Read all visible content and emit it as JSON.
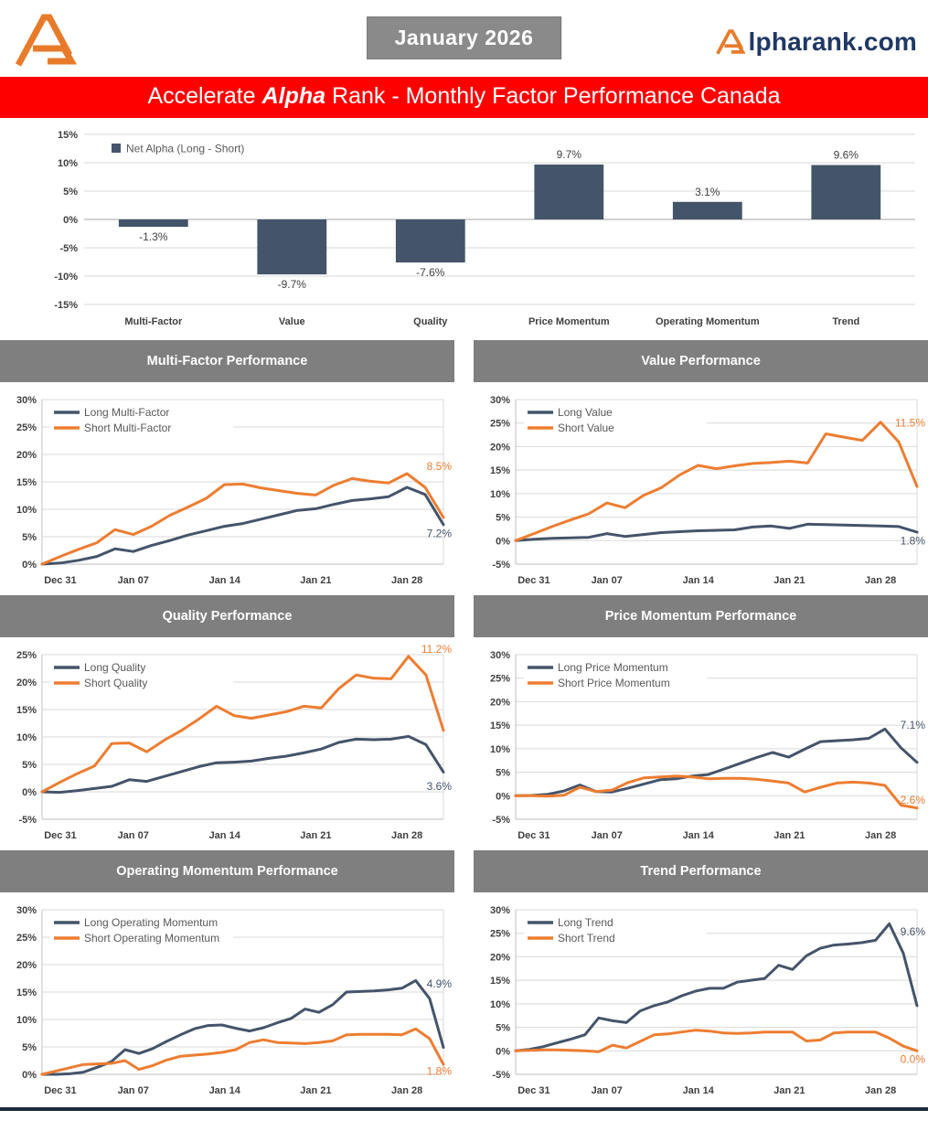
{
  "header": {
    "date_label": "January 2026",
    "brand_text": "lpharank.com"
  },
  "banner": {
    "prefix": "Accelerate",
    "emphasis": "Alpha",
    "suffix": "Rank - Monthly Factor Performance Canada"
  },
  "colors": {
    "long_line": "#44546A",
    "short_line": "#ED7D31",
    "banner_red": "#FF0000",
    "section_header_gray": "#7F7F7F",
    "brand_navy": "#1F3864",
    "logo_orange": "#E87B2A",
    "footer_bar": "#1C2B3A"
  },
  "chart_data": [
    {
      "id": "net-alpha",
      "type": "bar",
      "legend": "Net Alpha (Long - Short)",
      "categories": [
        "Multi-Factor",
        "Value",
        "Quality",
        "Price Momentum",
        "Operating Momentum",
        "Trend"
      ],
      "values": [
        -1.3,
        -9.7,
        -7.6,
        9.7,
        3.1,
        9.6
      ],
      "value_labels": [
        "-1.3%",
        "-9.7%",
        "-7.6%",
        "9.7%",
        "3.1%",
        "9.6%"
      ],
      "ylim": [
        -15,
        15
      ],
      "ytick_step": 5,
      "bar_color": "#44546A",
      "grid": true,
      "legend_position": "top-left"
    },
    {
      "id": "multi-factor",
      "type": "line",
      "title": "Multi-Factor Performance",
      "x_ticks": [
        "Dec 31",
        "Jan 07",
        "Jan 14",
        "Jan 21",
        "Jan 28"
      ],
      "ylim": [
        0,
        30
      ],
      "ytick_step": 5,
      "grid": true,
      "legend_position": "top-left",
      "series": [
        {
          "name": "Long Multi-Factor",
          "color": "#44546A",
          "end_label": "7.2%",
          "end_label_y": 5.6,
          "values": [
            0,
            0.2,
            0.7,
            1.4,
            2.8,
            2.3,
            3.4,
            4.3,
            5.3,
            6.1,
            6.9,
            7.4,
            8.2,
            9.0,
            9.8,
            10.1,
            10.9,
            11.6,
            11.9,
            12.3,
            14.0,
            12.7,
            7.2
          ]
        },
        {
          "name": "Short Multi-Factor",
          "color": "#ED7D31",
          "end_label": "8.5%",
          "end_label_y": 17.8,
          "values": [
            0,
            1.4,
            2.7,
            3.9,
            6.3,
            5.4,
            6.9,
            8.9,
            10.4,
            12.0,
            14.5,
            14.6,
            13.9,
            13.4,
            12.9,
            12.6,
            14.4,
            15.6,
            15.1,
            14.8,
            16.5,
            14.0,
            8.5
          ]
        }
      ]
    },
    {
      "id": "value",
      "type": "line",
      "title": "Value Performance",
      "x_ticks": [
        "Dec 31",
        "Jan 07",
        "Jan 14",
        "Jan 21",
        "Jan 28"
      ],
      "ylim": [
        -5,
        30
      ],
      "ytick_step": 5,
      "grid": true,
      "legend_position": "top-left",
      "series": [
        {
          "name": "Long Value",
          "color": "#44546A",
          "end_label": "1.8%",
          "end_label_y": 0.0,
          "values": [
            0,
            0.3,
            0.5,
            0.6,
            0.7,
            1.5,
            0.9,
            1.3,
            1.7,
            1.9,
            2.1,
            2.2,
            2.3,
            2.9,
            3.1,
            2.6,
            3.5,
            3.4,
            3.3,
            3.2,
            3.1,
            3.0,
            1.8
          ]
        },
        {
          "name": "Short Value",
          "color": "#ED7D31",
          "end_label": "11.5%",
          "end_label_y": 25.0,
          "values": [
            0,
            1.5,
            3.0,
            4.4,
            5.7,
            8.0,
            7.0,
            9.6,
            11.3,
            14.0,
            16.0,
            15.3,
            15.9,
            16.4,
            16.6,
            16.9,
            16.5,
            22.7,
            22.0,
            21.3,
            25.2,
            21.0,
            11.5
          ]
        }
      ]
    },
    {
      "id": "quality",
      "type": "line",
      "title": "Quality Performance",
      "x_ticks": [
        "Dec 31",
        "Jan 07",
        "Jan 14",
        "Jan 21",
        "Jan 28"
      ],
      "ylim": [
        -5,
        25
      ],
      "ytick_step": 5,
      "grid": true,
      "legend_position": "top-left",
      "series": [
        {
          "name": "Long Quality",
          "color": "#44546A",
          "end_label": "3.6%",
          "end_label_y": 1.0,
          "values": [
            0,
            -0.1,
            0.2,
            0.6,
            1.0,
            2.2,
            1.9,
            2.8,
            3.7,
            4.6,
            5.3,
            5.4,
            5.6,
            6.1,
            6.5,
            7.1,
            7.8,
            9.0,
            9.6,
            9.5,
            9.6,
            10.1,
            8.6,
            3.6
          ]
        },
        {
          "name": "Short Quality",
          "color": "#ED7D31",
          "end_label": "11.2%",
          "end_label_y": 26.0,
          "values": [
            0,
            1.7,
            3.3,
            4.7,
            8.8,
            8.9,
            7.3,
            9.4,
            11.2,
            13.3,
            15.6,
            13.9,
            13.4,
            14.0,
            14.6,
            15.6,
            15.3,
            18.8,
            21.3,
            20.7,
            20.6,
            24.7,
            21.3,
            11.2
          ]
        }
      ]
    },
    {
      "id": "price-momentum",
      "type": "line",
      "title": "Price Momentum Performance",
      "x_ticks": [
        "Dec 31",
        "Jan 07",
        "Jan 14",
        "Jan 21",
        "Jan 28"
      ],
      "ylim": [
        -5,
        30
      ],
      "ytick_step": 5,
      "grid": true,
      "legend_position": "top-left",
      "series": [
        {
          "name": "Long Price Momentum",
          "color": "#44546A",
          "end_label": "7.1%",
          "end_label_y": 15.0,
          "values": [
            0,
            0.05,
            0.3,
            1.0,
            2.3,
            0.9,
            0.8,
            1.6,
            2.5,
            3.4,
            3.6,
            4.2,
            4.5,
            5.7,
            6.9,
            8.1,
            9.2,
            8.2,
            9.9,
            11.5,
            11.7,
            11.9,
            12.2,
            14.2,
            10.2,
            7.1
          ]
        },
        {
          "name": "Short Price Momentum",
          "color": "#ED7D31",
          "end_label": "-2.6%",
          "end_label_y": -0.9,
          "values": [
            0,
            0,
            -0.1,
            0.1,
            1.8,
            0.9,
            1.2,
            2.8,
            3.8,
            4.0,
            4.2,
            4.0,
            3.6,
            3.7,
            3.7,
            3.5,
            3.1,
            2.7,
            0.8,
            1.8,
            2.7,
            2.9,
            2.7,
            2.2,
            -2.0,
            -2.6
          ]
        }
      ]
    },
    {
      "id": "operating-momentum",
      "type": "line",
      "title": "Operating Momentum Performance",
      "x_ticks": [
        "Dec 31",
        "Jan 07",
        "Jan 14",
        "Jan 21",
        "Jan 28"
      ],
      "ylim": [
        0,
        30
      ],
      "ytick_step": 5,
      "grid": true,
      "legend_position": "top-left",
      "series": [
        {
          "name": "Long Operating Momentum",
          "color": "#44546A",
          "end_label": "4.9%",
          "end_label_y": 16.5,
          "values": [
            0,
            0,
            0.1,
            0.4,
            1.3,
            2.3,
            4.5,
            3.8,
            4.7,
            6.0,
            7.2,
            8.3,
            8.9,
            9.0,
            8.4,
            7.9,
            8.5,
            9.4,
            10.2,
            11.9,
            11.3,
            12.7,
            15.0,
            15.1,
            15.2,
            15.4,
            15.7,
            17.1,
            13.8,
            4.9
          ]
        },
        {
          "name": "Short Operating Momentum",
          "color": "#ED7D31",
          "end_label": "1.8%",
          "end_label_y": 0.6,
          "values": [
            0,
            0.6,
            1.2,
            1.8,
            1.9,
            2.0,
            2.5,
            0.9,
            1.6,
            2.6,
            3.3,
            3.5,
            3.7,
            4.0,
            4.5,
            5.8,
            6.3,
            5.8,
            5.7,
            5.6,
            5.8,
            6.1,
            7.2,
            7.3,
            7.3,
            7.3,
            7.2,
            8.3,
            6.5,
            1.8
          ]
        }
      ]
    },
    {
      "id": "trend",
      "type": "line",
      "title": "Trend Performance",
      "x_ticks": [
        "Dec 31",
        "Jan 07",
        "Jan 14",
        "Jan 21",
        "Jan 28"
      ],
      "ylim": [
        -5,
        30
      ],
      "ytick_step": 5,
      "grid": true,
      "legend_position": "top-left",
      "series": [
        {
          "name": "Long Trend",
          "color": "#44546A",
          "end_label": "9.6%",
          "end_label_y": 25.3,
          "values": [
            0,
            0.3,
            0.9,
            1.7,
            2.5,
            3.4,
            7.0,
            6.4,
            6.0,
            8.5,
            9.6,
            10.4,
            11.7,
            12.7,
            13.3,
            13.3,
            14.6,
            15.0,
            15.4,
            18.2,
            17.3,
            20.2,
            21.8,
            22.5,
            22.7,
            23.0,
            23.5,
            27.0,
            20.8,
            9.6
          ]
        },
        {
          "name": "Short Trend",
          "color": "#ED7D31",
          "end_label": "0.0%",
          "end_label_y": -1.8,
          "values": [
            0,
            0.1,
            0.2,
            0.2,
            0.1,
            0,
            -0.2,
            1.2,
            0.6,
            2.0,
            3.4,
            3.6,
            4.0,
            4.4,
            4.2,
            3.8,
            3.7,
            3.8,
            4.0,
            4.0,
            4.0,
            2.1,
            2.3,
            3.8,
            4.0,
            4.0,
            4.0,
            2.7,
            1.0,
            0.0
          ]
        }
      ]
    }
  ]
}
